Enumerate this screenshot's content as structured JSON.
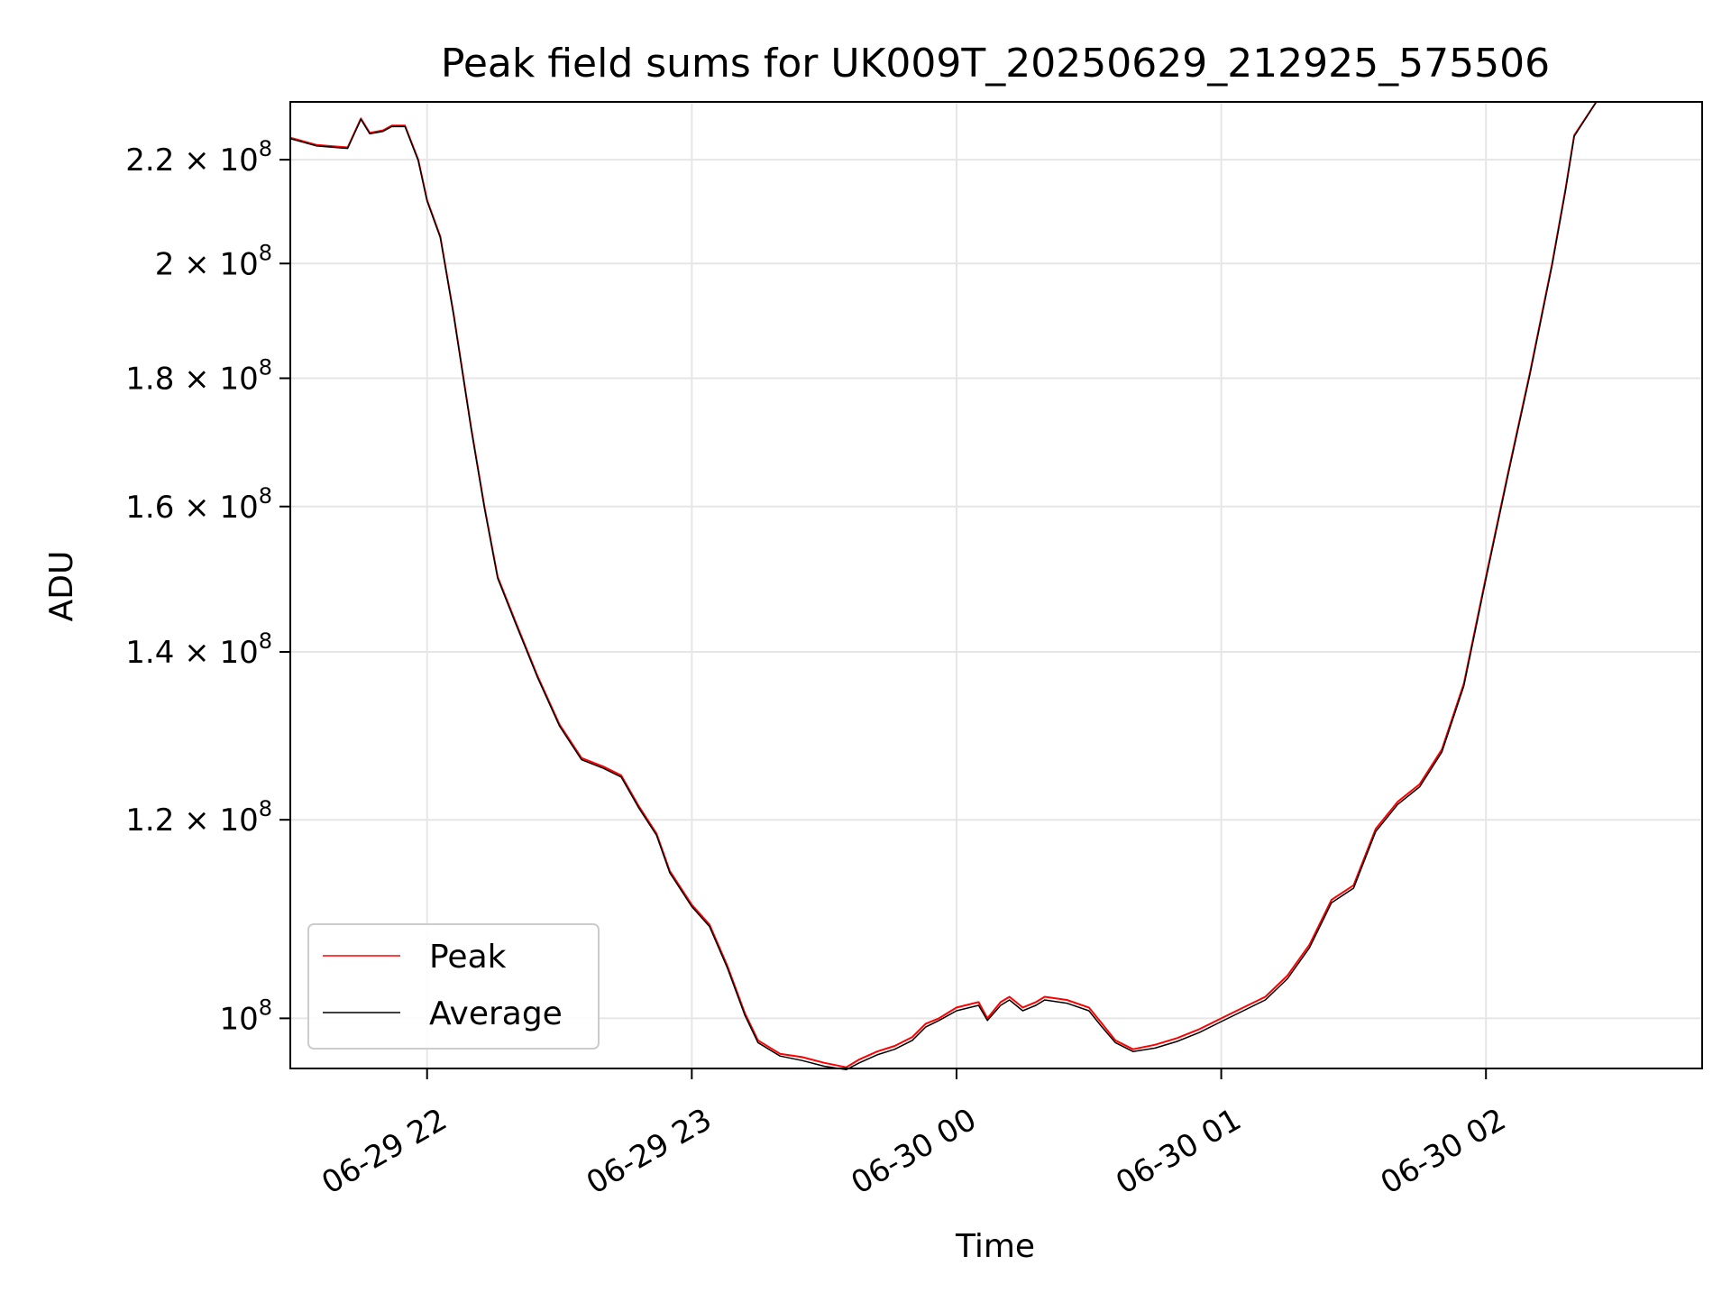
{
  "chart_data": {
    "type": "line",
    "title": "Peak field sums for UK009T_20250629_212925_575506",
    "xlabel": "Time",
    "ylabel": "ADU",
    "y_scale": "log",
    "x_range": [
      "2025-06-29 21:29",
      "2025-06-30 02:49"
    ],
    "ylim": [
      95500000,
      232000000
    ],
    "grid": true,
    "legend_position": "lower-left",
    "x_ticks": [
      {
        "time": "2025-06-29 22:00",
        "label": "06-29 22"
      },
      {
        "time": "2025-06-29 23:00",
        "label": "06-29 23"
      },
      {
        "time": "2025-06-30 00:00",
        "label": "06-30 00"
      },
      {
        "time": "2025-06-30 01:00",
        "label": "06-30 01"
      },
      {
        "time": "2025-06-30 02:00",
        "label": "06-30 02"
      }
    ],
    "y_ticks": [
      {
        "value": 100000000,
        "mantissa": "",
        "exponent": "8"
      },
      {
        "value": 120000000,
        "mantissa": "1.2",
        "exponent": "8"
      },
      {
        "value": 140000000,
        "mantissa": "1.4",
        "exponent": "8"
      },
      {
        "value": 160000000,
        "mantissa": "1.6",
        "exponent": "8"
      },
      {
        "value": 180000000,
        "mantissa": "1.8",
        "exponent": "8"
      },
      {
        "value": 200000000,
        "mantissa": "2",
        "exponent": "8"
      },
      {
        "value": 220000000,
        "mantissa": "2.2",
        "exponent": "8"
      }
    ],
    "series": [
      {
        "name": "Peak",
        "color": "#ff0000",
        "x": [
          "2025-06-29 21:29",
          "2025-06-29 21:35",
          "2025-06-29 21:42",
          "2025-06-29 21:45",
          "2025-06-29 21:47",
          "2025-06-29 21:50",
          "2025-06-29 21:52",
          "2025-06-29 21:55",
          "2025-06-29 21:58",
          "2025-06-29 22:00",
          "2025-06-29 22:03",
          "2025-06-29 22:06",
          "2025-06-29 22:10",
          "2025-06-29 22:13",
          "2025-06-29 22:16",
          "2025-06-29 22:20",
          "2025-06-29 22:25",
          "2025-06-29 22:30",
          "2025-06-29 22:35",
          "2025-06-29 22:40",
          "2025-06-29 22:44",
          "2025-06-29 22:48",
          "2025-06-29 22:52",
          "2025-06-29 22:55",
          "2025-06-29 23:00",
          "2025-06-29 23:04",
          "2025-06-29 23:08",
          "2025-06-29 23:12",
          "2025-06-29 23:15",
          "2025-06-29 23:20",
          "2025-06-29 23:25",
          "2025-06-29 23:30",
          "2025-06-29 23:35",
          "2025-06-29 23:38",
          "2025-06-29 23:42",
          "2025-06-29 23:46",
          "2025-06-29 23:50",
          "2025-06-29 23:53",
          "2025-06-29 23:56",
          "2025-06-30 00:00",
          "2025-06-30 00:05",
          "2025-06-30 00:07",
          "2025-06-30 00:10",
          "2025-06-30 00:12",
          "2025-06-30 00:15",
          "2025-06-30 00:18",
          "2025-06-30 00:20",
          "2025-06-30 00:25",
          "2025-06-30 00:30",
          "2025-06-30 00:33",
          "2025-06-30 00:36",
          "2025-06-30 00:40",
          "2025-06-30 00:45",
          "2025-06-30 00:50",
          "2025-06-30 00:55",
          "2025-06-30 01:00",
          "2025-06-30 01:05",
          "2025-06-30 01:10",
          "2025-06-30 01:15",
          "2025-06-30 01:20",
          "2025-06-30 01:25",
          "2025-06-30 01:30",
          "2025-06-30 01:35",
          "2025-06-30 01:40",
          "2025-06-30 01:45",
          "2025-06-30 01:50",
          "2025-06-30 01:55",
          "2025-06-30 02:00",
          "2025-06-30 02:05",
          "2025-06-30 02:10",
          "2025-06-30 02:15",
          "2025-06-30 02:18",
          "2025-06-30 02:20",
          "2025-06-30 02:25"
        ],
        "y": [
          224500000,
          223000000,
          222500000,
          228500000,
          225500000,
          226000000,
          227000000,
          227000000,
          220000000,
          212000000,
          205000000,
          191000000,
          172000000,
          160000000,
          150000000,
          144000000,
          137000000,
          131000000,
          127000000,
          126000000,
          125000000,
          121500000,
          118500000,
          114500000,
          111000000,
          109000000,
          105000000,
          100500000,
          98000000,
          96800000,
          96500000,
          96000000,
          95600000,
          96300000,
          97000000,
          97500000,
          98300000,
          99500000,
          100000000,
          101000000,
          101500000,
          100000000,
          101500000,
          102000000,
          101000000,
          101500000,
          102000000,
          101700000,
          101000000,
          99500000,
          98000000,
          97200000,
          97600000,
          98200000,
          99000000,
          100000000,
          101000000,
          102000000,
          104000000,
          107000000,
          111500000,
          113000000,
          119000000,
          122000000,
          124000000,
          128000000,
          136000000,
          150000000,
          165000000,
          181000000,
          200000000,
          214000000,
          225000000,
          232000000
        ]
      },
      {
        "name": "Average",
        "color": "#000000",
        "x": [
          "2025-06-29 21:29",
          "2025-06-29 21:35",
          "2025-06-29 21:42",
          "2025-06-29 21:45",
          "2025-06-29 21:47",
          "2025-06-29 21:50",
          "2025-06-29 21:52",
          "2025-06-29 21:55",
          "2025-06-29 21:58",
          "2025-06-29 22:00",
          "2025-06-29 22:03",
          "2025-06-29 22:06",
          "2025-06-29 22:10",
          "2025-06-29 22:13",
          "2025-06-29 22:16",
          "2025-06-29 22:20",
          "2025-06-29 22:25",
          "2025-06-29 22:30",
          "2025-06-29 22:35",
          "2025-06-29 22:40",
          "2025-06-29 22:44",
          "2025-06-29 22:48",
          "2025-06-29 22:52",
          "2025-06-29 22:55",
          "2025-06-29 23:00",
          "2025-06-29 23:04",
          "2025-06-29 23:08",
          "2025-06-29 23:12",
          "2025-06-29 23:15",
          "2025-06-29 23:20",
          "2025-06-29 23:25",
          "2025-06-29 23:30",
          "2025-06-29 23:35",
          "2025-06-29 23:38",
          "2025-06-29 23:42",
          "2025-06-29 23:46",
          "2025-06-29 23:50",
          "2025-06-29 23:53",
          "2025-06-29 23:56",
          "2025-06-30 00:00",
          "2025-06-30 00:05",
          "2025-06-30 00:07",
          "2025-06-30 00:10",
          "2025-06-30 00:12",
          "2025-06-30 00:15",
          "2025-06-30 00:18",
          "2025-06-30 00:20",
          "2025-06-30 00:25",
          "2025-06-30 00:30",
          "2025-06-30 00:33",
          "2025-06-30 00:36",
          "2025-06-30 00:40",
          "2025-06-30 00:45",
          "2025-06-30 00:50",
          "2025-06-30 00:55",
          "2025-06-30 01:00",
          "2025-06-30 01:05",
          "2025-06-30 01:10",
          "2025-06-30 01:15",
          "2025-06-30 01:20",
          "2025-06-30 01:25",
          "2025-06-30 01:30",
          "2025-06-30 01:35",
          "2025-06-30 01:40",
          "2025-06-30 01:45",
          "2025-06-30 01:50",
          "2025-06-30 01:55",
          "2025-06-30 02:00",
          "2025-06-30 02:05",
          "2025-06-30 02:10",
          "2025-06-30 02:15",
          "2025-06-30 02:18",
          "2025-06-30 02:20",
          "2025-06-30 02:25"
        ],
        "y": [
          224300000,
          222800000,
          222300000,
          228300000,
          225300000,
          225800000,
          226800000,
          226800000,
          219800000,
          211800000,
          204800000,
          190800000,
          171800000,
          159800000,
          149800000,
          143800000,
          136800000,
          130800000,
          126800000,
          125800000,
          124800000,
          121300000,
          118300000,
          114300000,
          110800000,
          108800000,
          104800000,
          100300000,
          97800000,
          96600000,
          96200000,
          95700000,
          95400000,
          96000000,
          96700000,
          97200000,
          98000000,
          99200000,
          99800000,
          100700000,
          101200000,
          99800000,
          101200000,
          101700000,
          100700000,
          101200000,
          101700000,
          101400000,
          100700000,
          99200000,
          97800000,
          97000000,
          97300000,
          97900000,
          98700000,
          99700000,
          100700000,
          101700000,
          103700000,
          106700000,
          111200000,
          112700000,
          118700000,
          121700000,
          123700000,
          127700000,
          135700000,
          149700000,
          164700000,
          180700000,
          199700000,
          213700000,
          224800000,
          232000000
        ]
      }
    ]
  }
}
